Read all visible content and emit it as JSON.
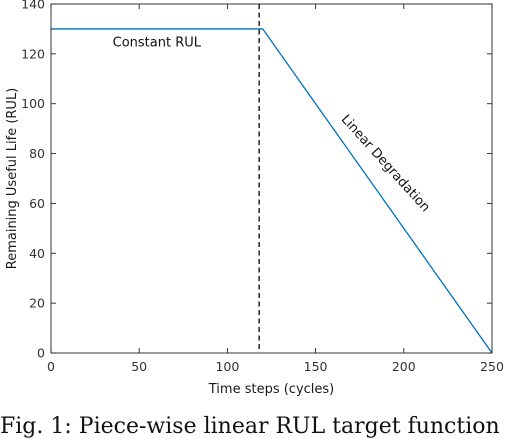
{
  "caption": "Fig. 1: Piece-wise linear RUL target function",
  "chart_data": {
    "type": "line",
    "xlabel": "Time steps (cycles)",
    "ylabel": "Remaining Useful Life (RUL)",
    "xlim": [
      0,
      250
    ],
    "ylim": [
      0,
      140
    ],
    "xticks": [
      0,
      50,
      100,
      150,
      200,
      250
    ],
    "yticks": [
      0,
      20,
      40,
      60,
      80,
      100,
      120,
      140
    ],
    "grid": false,
    "series": [
      {
        "x": [
          0,
          120,
          250
        ],
        "y": [
          130,
          130,
          0
        ],
        "color": "#0072bd"
      }
    ],
    "vline": {
      "x": 118,
      "style": "dashed",
      "color": "#000000"
    },
    "annotations": [
      {
        "text": "Constant RUL",
        "x": 60,
        "y": 123,
        "rotation": 0
      },
      {
        "text": "Linear Degradation",
        "x": 188,
        "y": 75,
        "rotation": 48
      }
    ]
  }
}
